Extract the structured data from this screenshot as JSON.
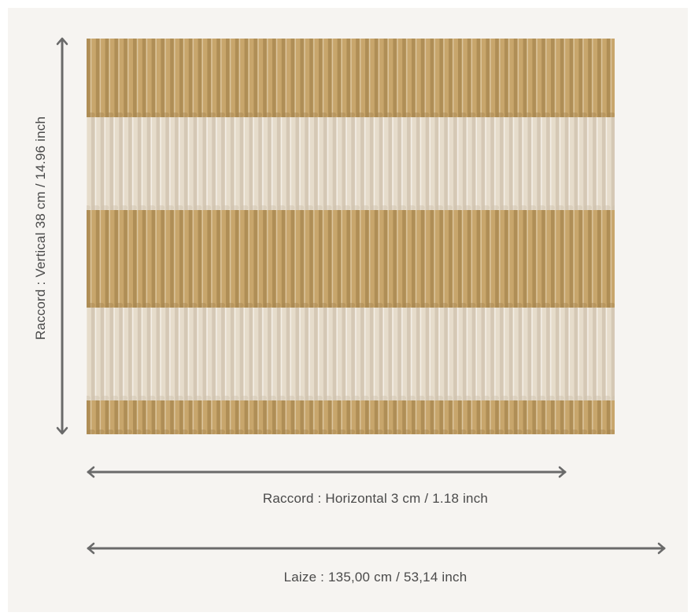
{
  "dimensions": {
    "vertical_repeat_label": "Raccord : Vertical 38 cm / 14.96 inch",
    "horizontal_repeat_label": "Raccord : Horizontal 3 cm / 1.18 inch",
    "width_label": "Laize : 135,00 cm / 53,14 inch"
  },
  "swatch": {
    "description_colors": {
      "gold": "#c8a66c",
      "gold_dark": "#a7854f",
      "cream": "#e6dccb",
      "cream_dark": "#cfc2ad"
    }
  },
  "arrows": {
    "color": "#6a6a6a"
  }
}
